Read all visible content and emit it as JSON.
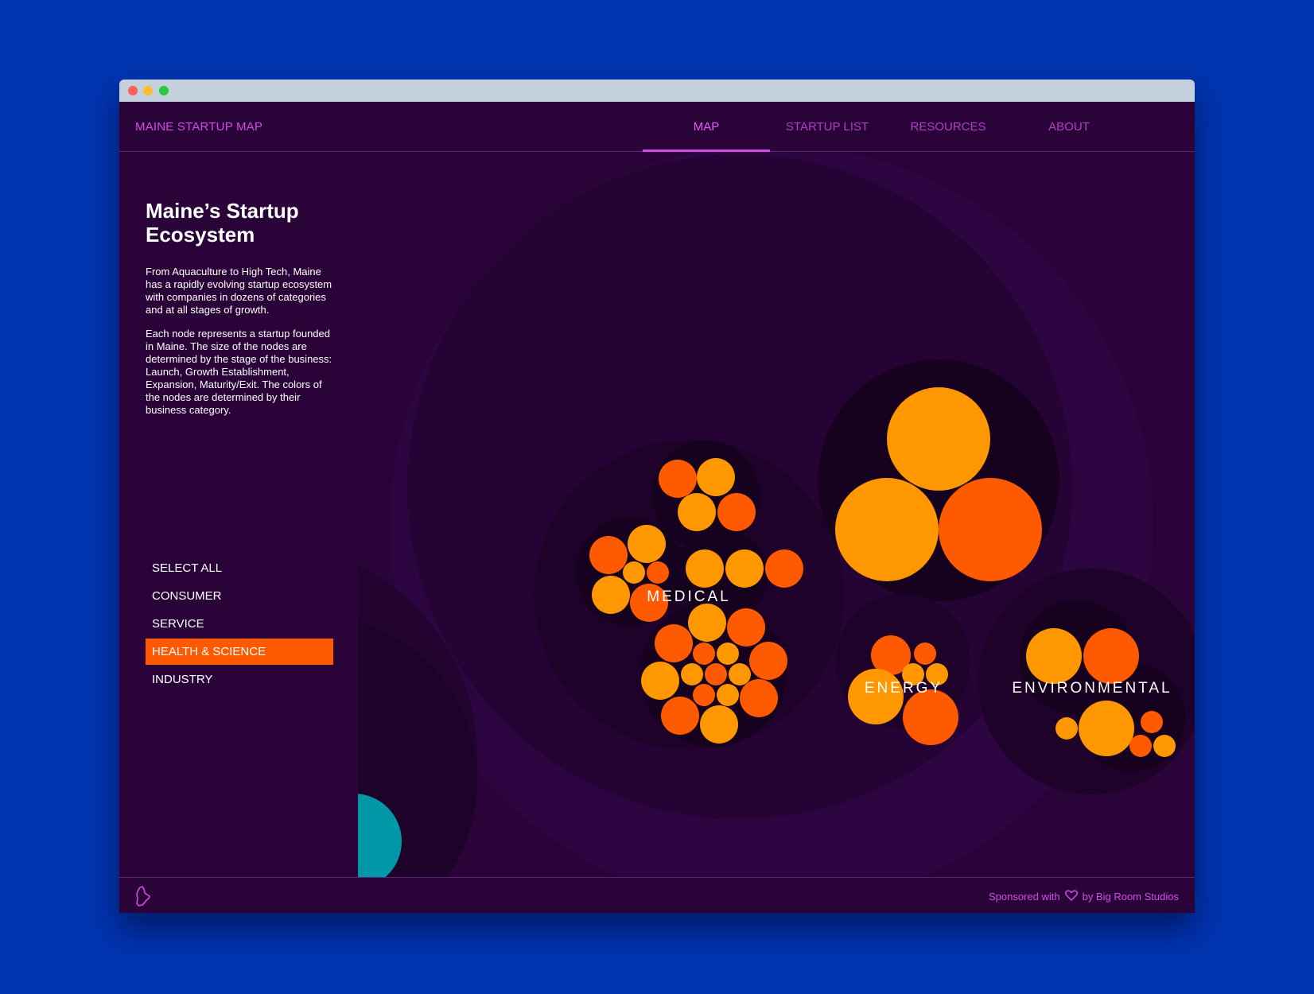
{
  "app": {
    "brand": "MAINE STARTUP MAP"
  },
  "nav": [
    {
      "label": "MAP",
      "active": true
    },
    {
      "label": "STARTUP LIST",
      "active": false
    },
    {
      "label": "RESOURCES",
      "active": false
    },
    {
      "label": "ABOUT",
      "active": false
    }
  ],
  "sidebar": {
    "title": "Maine’s Startup Ecosystem",
    "paragraph1": "From Aquaculture to High Tech, Maine has a rapidly evolving startup ecosystem with companies in dozens of categories and at all stages of growth.",
    "paragraph2": "Each node represents a startup founded in Maine. The size of the nodes are determined by the stage of the business: Launch, Growth Establishment, Expansion, Maturity/Exit. The colors of the nodes are determined by their business category.",
    "filters": [
      {
        "label": "SELECT ALL",
        "active": false
      },
      {
        "label": "CONSUMER",
        "active": false
      },
      {
        "label": "SERVICE",
        "active": false
      },
      {
        "label": "HEALTH & SCIENCE",
        "active": true
      },
      {
        "label": "INDUSTRY",
        "active": false
      }
    ]
  },
  "map": {
    "labels": {
      "medical": "MEDICAL",
      "energy": "ENERGY",
      "environmental": "ENVIRONMENTAL"
    },
    "colors": {
      "orange_light": "#ff9800",
      "orange_dark": "#ff5a00",
      "teal": "#0097a7",
      "bg": "#2a0439"
    }
  },
  "footer": {
    "sponsor_prefix": "Sponsored with",
    "sponsor_suffix": "by Big Room Studios",
    "heart_icon": "heart-icon",
    "maine_icon": "maine-outline-icon"
  }
}
